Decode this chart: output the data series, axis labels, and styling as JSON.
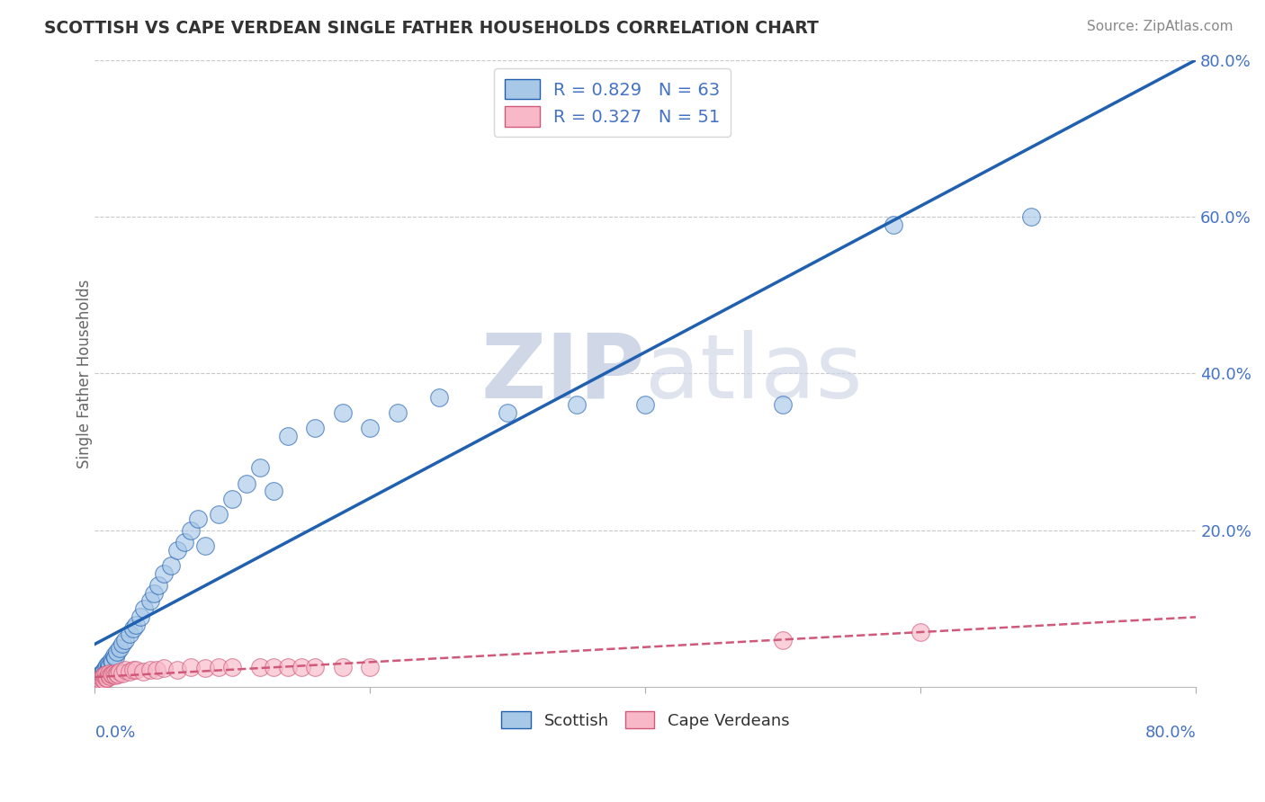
{
  "title": "SCOTTISH VS CAPE VERDEAN SINGLE FATHER HOUSEHOLDS CORRELATION CHART",
  "source": "Source: ZipAtlas.com",
  "ylabel": "Single Father Households",
  "xlim": [
    0,
    0.8
  ],
  "ylim": [
    0,
    0.8
  ],
  "scottish_R": 0.829,
  "scottish_N": 63,
  "capeverdean_R": 0.327,
  "capeverdean_N": 51,
  "scottish_color": "#a8c8e8",
  "capeverdean_color": "#f8b8c8",
  "scottish_line_color": "#2060b0",
  "capeverdean_line_color": "#d05878",
  "background_color": "#ffffff",
  "grid_color": "#c8c8c8",
  "title_color": "#333333",
  "axis_label_color": "#4472c4",
  "watermark_color": "#d0d8e8",
  "scottish_x": [
    0.001,
    0.001,
    0.002,
    0.002,
    0.003,
    0.003,
    0.003,
    0.004,
    0.004,
    0.005,
    0.005,
    0.005,
    0.006,
    0.006,
    0.007,
    0.007,
    0.008,
    0.008,
    0.009,
    0.009,
    0.01,
    0.01,
    0.011,
    0.012,
    0.013,
    0.014,
    0.015,
    0.016,
    0.018,
    0.02,
    0.022,
    0.025,
    0.028,
    0.03,
    0.033,
    0.036,
    0.04,
    0.043,
    0.046,
    0.05,
    0.055,
    0.06,
    0.065,
    0.07,
    0.075,
    0.08,
    0.09,
    0.1,
    0.11,
    0.12,
    0.13,
    0.14,
    0.16,
    0.18,
    0.2,
    0.22,
    0.25,
    0.3,
    0.35,
    0.4,
    0.5,
    0.58,
    0.68
  ],
  "scottish_y": [
    0.002,
    0.005,
    0.003,
    0.008,
    0.005,
    0.01,
    0.015,
    0.008,
    0.012,
    0.01,
    0.015,
    0.018,
    0.012,
    0.02,
    0.015,
    0.022,
    0.018,
    0.025,
    0.02,
    0.028,
    0.025,
    0.03,
    0.028,
    0.035,
    0.032,
    0.04,
    0.038,
    0.045,
    0.05,
    0.055,
    0.06,
    0.068,
    0.075,
    0.08,
    0.09,
    0.1,
    0.11,
    0.12,
    0.13,
    0.145,
    0.155,
    0.175,
    0.185,
    0.2,
    0.215,
    0.18,
    0.22,
    0.24,
    0.26,
    0.28,
    0.25,
    0.32,
    0.33,
    0.35,
    0.33,
    0.35,
    0.37,
    0.35,
    0.36,
    0.36,
    0.36,
    0.59,
    0.6
  ],
  "capeverdean_x": [
    0.001,
    0.001,
    0.002,
    0.002,
    0.003,
    0.003,
    0.003,
    0.004,
    0.004,
    0.005,
    0.005,
    0.006,
    0.006,
    0.007,
    0.007,
    0.008,
    0.008,
    0.009,
    0.01,
    0.01,
    0.011,
    0.012,
    0.013,
    0.014,
    0.015,
    0.016,
    0.017,
    0.018,
    0.02,
    0.022,
    0.025,
    0.028,
    0.03,
    0.035,
    0.04,
    0.045,
    0.05,
    0.06,
    0.07,
    0.08,
    0.09,
    0.1,
    0.12,
    0.13,
    0.14,
    0.15,
    0.16,
    0.18,
    0.2,
    0.5,
    0.6
  ],
  "capeverdean_y": [
    0.002,
    0.005,
    0.003,
    0.007,
    0.004,
    0.008,
    0.01,
    0.006,
    0.01,
    0.008,
    0.012,
    0.01,
    0.014,
    0.01,
    0.015,
    0.012,
    0.016,
    0.012,
    0.015,
    0.018,
    0.014,
    0.016,
    0.016,
    0.018,
    0.015,
    0.018,
    0.016,
    0.02,
    0.018,
    0.022,
    0.02,
    0.022,
    0.022,
    0.02,
    0.022,
    0.022,
    0.024,
    0.022,
    0.025,
    0.024,
    0.025,
    0.025,
    0.026,
    0.025,
    0.026,
    0.026,
    0.025,
    0.025,
    0.026,
    0.06,
    0.07
  ],
  "scottish_trendline": [
    0.0,
    0.6
  ],
  "capeverdean_trendline_y": [
    0.01,
    0.13
  ]
}
